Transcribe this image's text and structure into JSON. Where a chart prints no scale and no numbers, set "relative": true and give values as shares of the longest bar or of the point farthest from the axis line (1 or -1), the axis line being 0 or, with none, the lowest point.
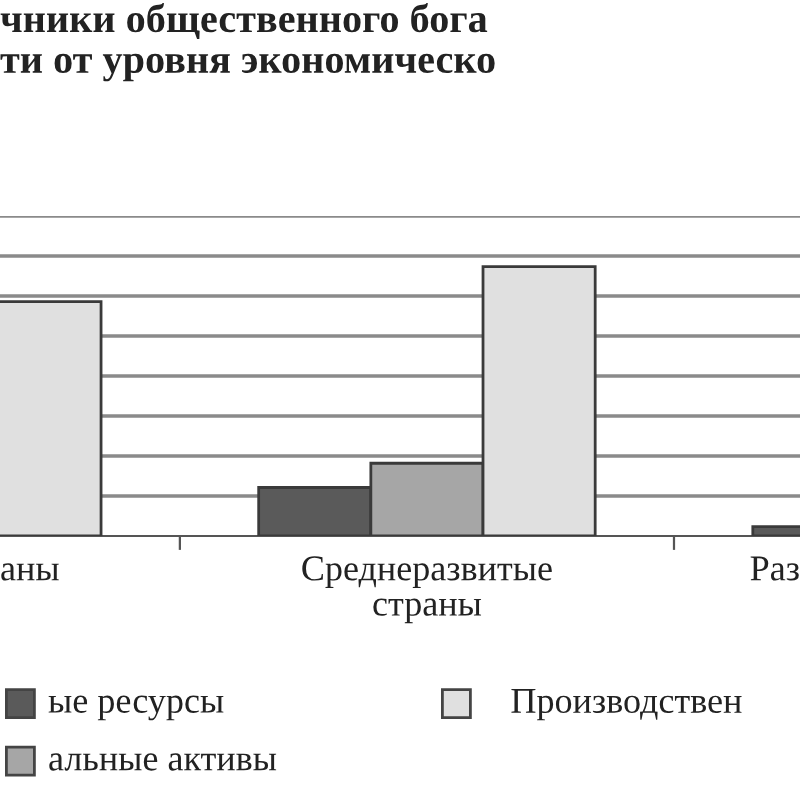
{
  "chart_data": {
    "type": "bar",
    "title": "чники общественного бога\nти от уровня экономическо",
    "categories": [
      "аны",
      "Среднеразвитые\nстраны",
      "Раз"
    ],
    "relative": true,
    "grid": "y",
    "legend": "bottom",
    "series": [
      {
        "name": "ые ресурсы",
        "color": "#5a5a5a",
        "values": [
          null,
          0.18,
          0.035
        ]
      },
      {
        "name": "альные активы",
        "color": "#a6a6a6",
        "values": [
          null,
          0.27,
          null
        ]
      },
      {
        "name": "Производствен",
        "color": "#e0e0e0",
        "values": [
          0.87,
          1,
          null
        ]
      }
    ]
  }
}
